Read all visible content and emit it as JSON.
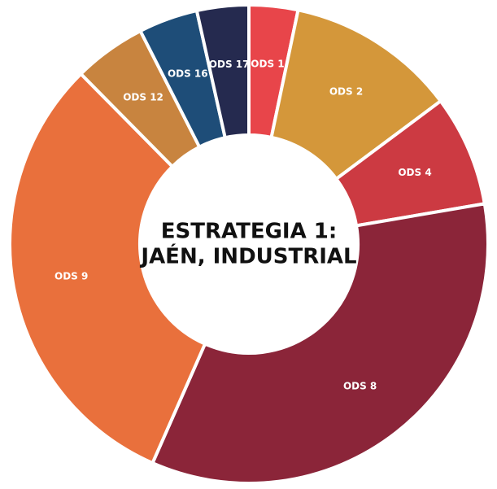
{
  "chart_data": {
    "type": "donut",
    "title": [
      "ESTRATEGIA 1:",
      "JAÉN, INDUSTRIAL"
    ],
    "categories": [
      "ODS 1",
      "ODS 2",
      "ODS 4",
      "ODS 8",
      "ODS 9",
      "ODS 12",
      "ODS 16",
      "ODS 17"
    ],
    "values": [
      3.3,
      11.5,
      7.5,
      34.3,
      31,
      4.9,
      4,
      3.5
    ],
    "colors": [
      "#e8454a",
      "#d4973a",
      "#cc3a42",
      "#8b2539",
      "#e9703c",
      "#c8843f",
      "#1e4d78",
      "#252a4f"
    ]
  }
}
